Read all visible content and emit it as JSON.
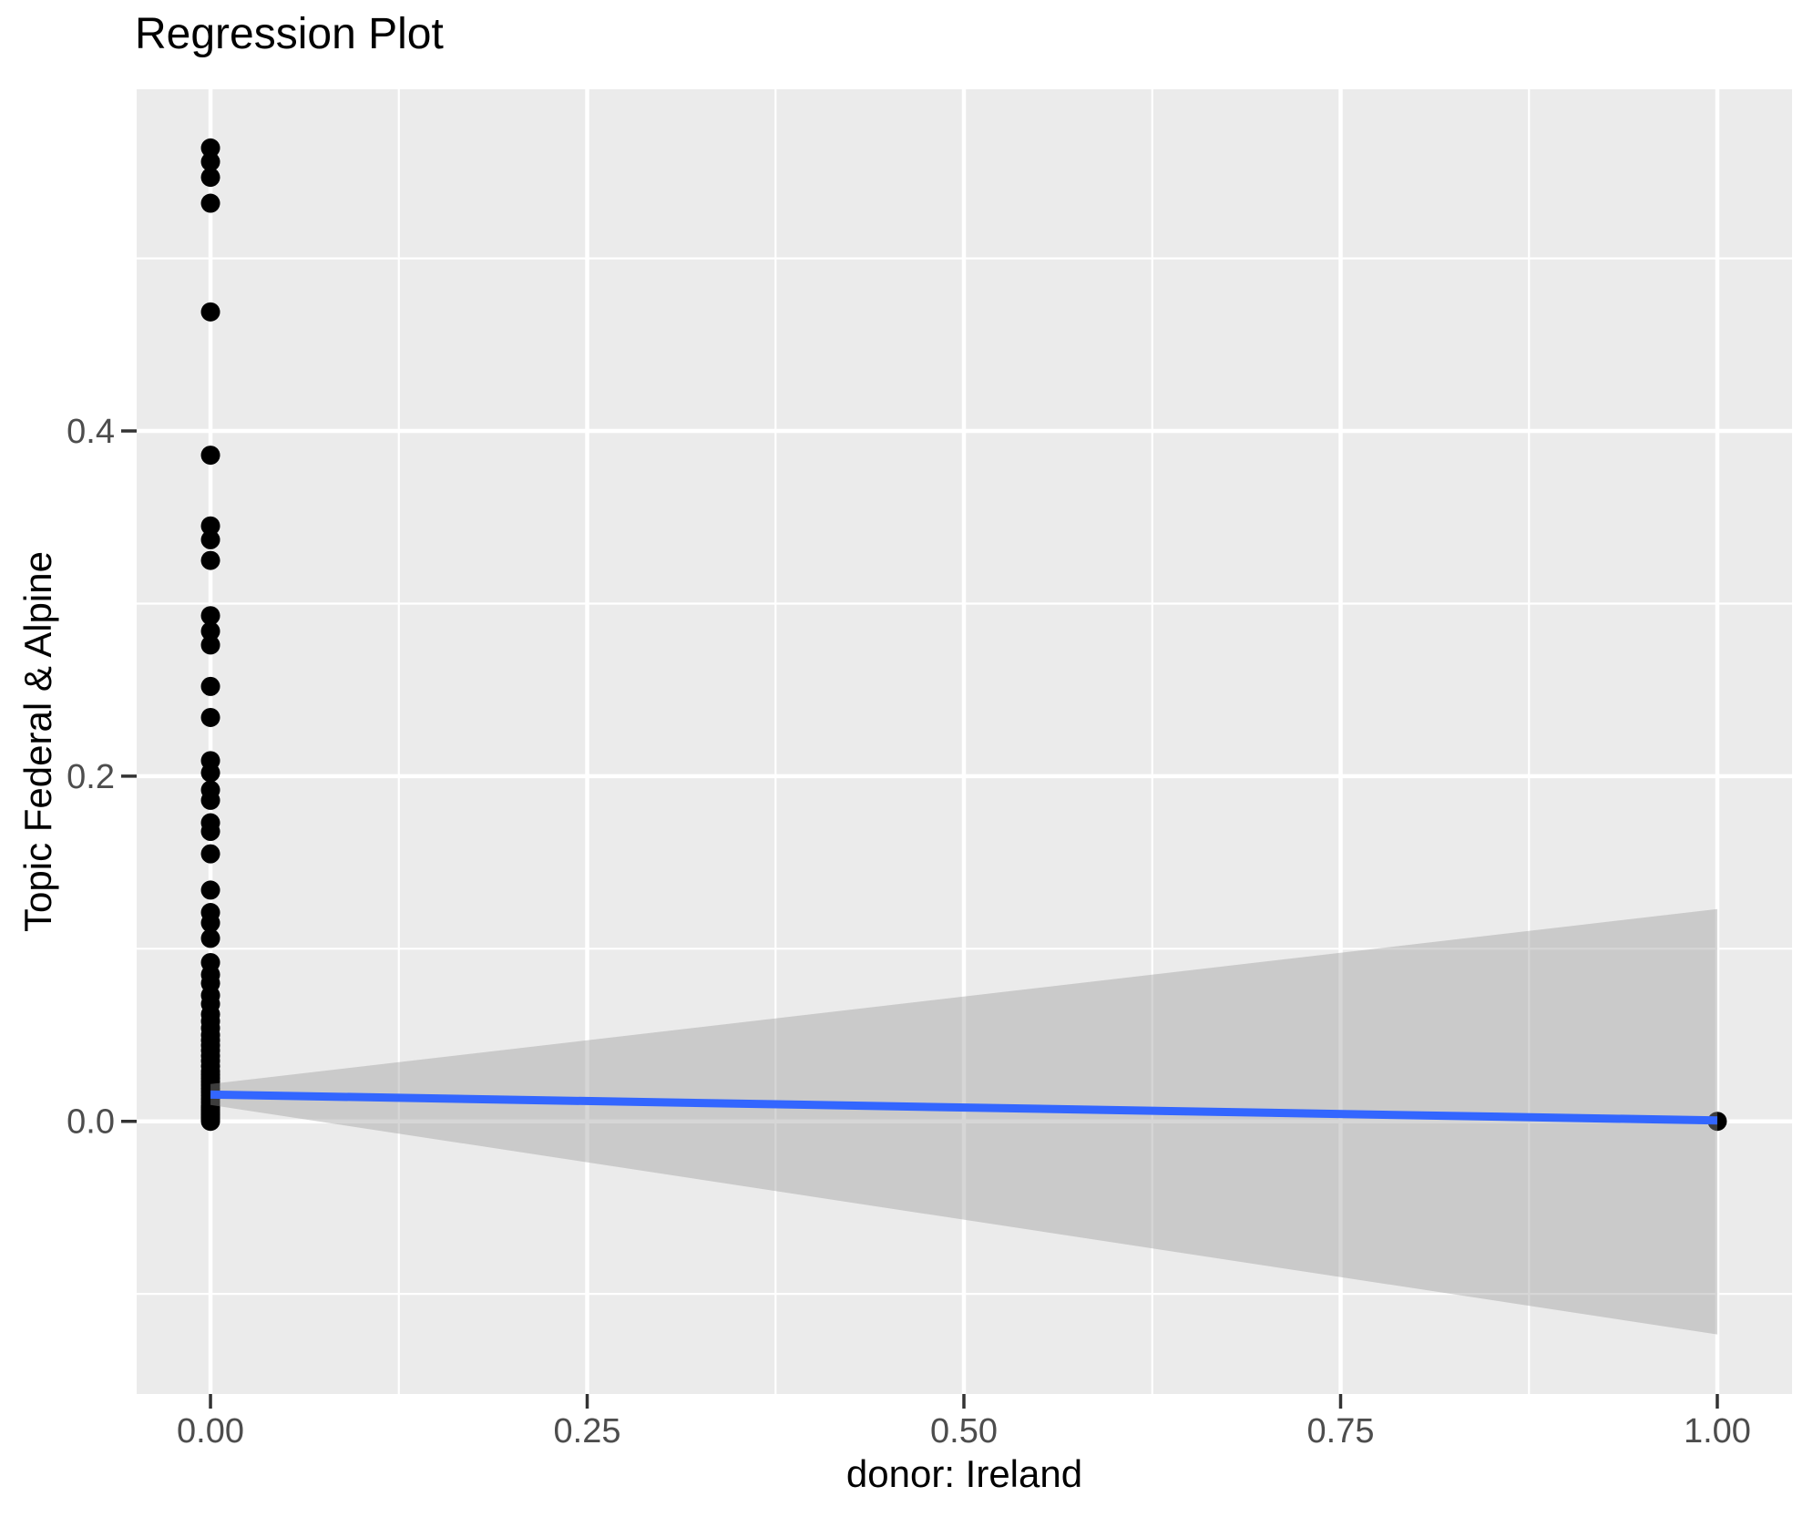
{
  "chart_data": {
    "type": "scatter",
    "title": "Regression Plot",
    "xlabel": "donor: Ireland",
    "ylabel": "Topic Federal & Alpine",
    "legend": "none",
    "grid": "on",
    "xlim": [
      -0.049,
      1.0496
    ],
    "ylim": [
      -0.158,
      0.598
    ],
    "x_ticks": {
      "values": [
        0,
        0.25,
        0.5,
        0.75,
        1.0
      ],
      "labels": [
        "0.00",
        "0.25",
        "0.50",
        "0.75",
        "1.00"
      ]
    },
    "y_ticks": {
      "values": [
        0,
        0.2,
        0.4
      ],
      "labels": [
        "0.0",
        "0.2",
        "0.4"
      ]
    },
    "x_minor": [
      0.125,
      0.375,
      0.625,
      0.875
    ],
    "y_minor": [
      -0.1,
      0.1,
      0.3,
      0.5
    ],
    "points": [
      [
        0,
        0.564
      ],
      [
        0,
        0.556
      ],
      [
        0,
        0.547
      ],
      [
        0,
        0.532
      ],
      [
        0,
        0.469
      ],
      [
        0,
        0.386
      ],
      [
        0,
        0.345
      ],
      [
        0,
        0.337
      ],
      [
        0,
        0.325
      ],
      [
        0,
        0.293
      ],
      [
        0,
        0.284
      ],
      [
        0,
        0.276
      ],
      [
        0,
        0.252
      ],
      [
        0,
        0.234
      ],
      [
        0,
        0.209
      ],
      [
        0,
        0.202
      ],
      [
        0,
        0.192
      ],
      [
        0,
        0.186
      ],
      [
        0,
        0.173
      ],
      [
        0,
        0.168
      ],
      [
        0,
        0.155
      ],
      [
        0,
        0.134
      ],
      [
        0,
        0.121
      ],
      [
        0,
        0.115
      ],
      [
        0,
        0.106
      ],
      [
        0,
        0.092
      ],
      [
        0,
        0.085
      ],
      [
        0,
        0.08
      ],
      [
        0,
        0.073
      ],
      [
        0,
        0.068
      ],
      [
        0,
        0.062
      ],
      [
        0,
        0.058
      ],
      [
        0,
        0.054
      ],
      [
        0,
        0.05
      ],
      [
        0,
        0.047
      ],
      [
        0,
        0.044
      ],
      [
        0,
        0.041
      ],
      [
        0,
        0.038
      ],
      [
        0,
        0.035
      ],
      [
        0,
        0.032
      ],
      [
        0,
        0.029
      ],
      [
        0,
        0.027
      ],
      [
        0,
        0.025
      ],
      [
        0,
        0.023
      ],
      [
        0,
        0.021
      ],
      [
        0,
        0.019
      ],
      [
        0,
        0.017
      ],
      [
        0,
        0.015
      ],
      [
        0,
        0.013
      ],
      [
        0,
        0.011
      ],
      [
        0,
        0.009
      ],
      [
        0,
        0.008
      ],
      [
        0,
        0.007
      ],
      [
        0,
        0.006
      ],
      [
        0,
        0.005
      ],
      [
        0,
        0.004
      ],
      [
        0,
        0.003
      ],
      [
        0,
        0.002
      ],
      [
        0,
        0.001
      ],
      [
        0,
        0.0
      ],
      [
        1,
        0.0
      ]
    ],
    "regression_line": {
      "x": [
        0,
        1
      ],
      "y": [
        0.0155,
        0.0005
      ]
    },
    "ci_band": {
      "x": [
        0,
        1
      ],
      "upper": [
        0.0216,
        0.123
      ],
      "lower": [
        0.0095,
        -0.1235
      ]
    },
    "colors": {
      "panel_bg": "#EBEBEB",
      "grid": "#FFFFFF",
      "point": "#000000",
      "regression_line": "#3366FF",
      "ci_fill": "#999999",
      "ci_alpha": 0.4,
      "tick_label": "#4D4D4D",
      "tick_mark": "#333333",
      "title_text": "#000000"
    }
  }
}
